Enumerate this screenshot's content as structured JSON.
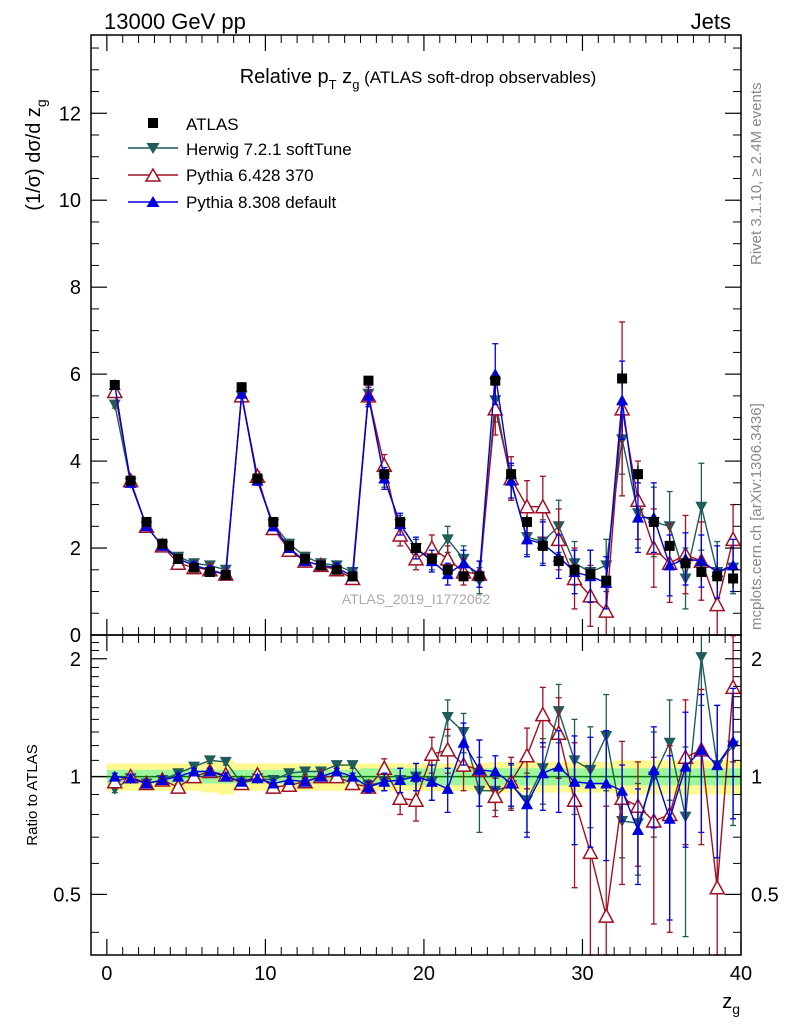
{
  "header": {
    "energy": "13000 GeV pp",
    "category": "Jets"
  },
  "side_labels": {
    "rivet": "Rivet 3.1.10, ≥ 2.4M events",
    "mcplots": "mcplots.cern.ch [arXiv:1306.3436]"
  },
  "watermark": "ATLAS_2019_I1772062",
  "colors": {
    "atlas": "#000000",
    "herwig": "#1f5c5c",
    "pythia6": "#a01020",
    "pythia8": "#0000dd",
    "band_outer": "#fdf98f",
    "band_inner": "#9cf79c",
    "reference_line": "#007700"
  },
  "chart_data": [
    {
      "type": "scatter",
      "panel": "main",
      "title": "Relative p_T z_g (ATLAS soft-drop observables)",
      "title_parts": {
        "pre": "Relative p",
        "sub_t": "T",
        "z": " z",
        "sub_g": "g",
        "post": " (ATLAS soft-drop observables)"
      },
      "xlabel": "z_g",
      "ylabel": "(1/σ) dσ/d z_g",
      "ylabel_parts": {
        "main": "(1/σ) dσ/d z",
        "sub": "g"
      },
      "xlim": [
        -1,
        40
      ],
      "ylim": [
        0,
        13.8
      ],
      "x_ticks": [
        0,
        10,
        20,
        30,
        40
      ],
      "y_ticks": [
        0,
        2,
        4,
        6,
        8,
        10,
        12
      ],
      "x": [
        0.5,
        1.5,
        2.5,
        3.5,
        4.5,
        5.5,
        6.5,
        7.5,
        8.5,
        9.5,
        10.5,
        11.5,
        12.5,
        13.5,
        14.5,
        15.5,
        16.5,
        17.5,
        18.5,
        19.5,
        20.5,
        21.5,
        22.5,
        23.5,
        24.5,
        25.5,
        26.5,
        27.5,
        28.5,
        29.5,
        30.5,
        31.5,
        32.5,
        33.5,
        34.5,
        35.5,
        36.5,
        37.5,
        38.5,
        39.5
      ],
      "legend_position": "top-left",
      "series": [
        {
          "name": "ATLAS",
          "key": "atlas",
          "marker": "square",
          "values": [
            5.75,
            3.55,
            2.6,
            2.1,
            1.75,
            1.55,
            1.45,
            1.38,
            5.7,
            3.6,
            2.6,
            2.05,
            1.75,
            1.6,
            1.5,
            1.35,
            5.85,
            3.7,
            2.6,
            2.0,
            1.75,
            1.5,
            1.35,
            1.35,
            5.85,
            3.7,
            2.6,
            2.05,
            1.7,
            1.5,
            1.4,
            1.25,
            5.9,
            3.7,
            2.6,
            2.05,
            1.65,
            1.45,
            1.35,
            1.3
          ],
          "errors": [
            0.05,
            0.05,
            0.05,
            0.05,
            0.05,
            0.05,
            0.05,
            0.05,
            0.05,
            0.05,
            0.05,
            0.05,
            0.05,
            0.05,
            0.05,
            0.05,
            0.1,
            0.1,
            0.1,
            0.1,
            0.1,
            0.1,
            0.1,
            0.1,
            0.15,
            0.15,
            0.15,
            0.15,
            0.15,
            0.15,
            0.15,
            0.15,
            0.2,
            0.2,
            0.2,
            0.2,
            0.2,
            0.2,
            0.2,
            0.2
          ]
        },
        {
          "name": "Herwig 7.2.1 softTune",
          "key": "herwig",
          "marker": "triangle-down",
          "values": [
            5.3,
            3.5,
            2.5,
            2.05,
            1.8,
            1.65,
            1.6,
            1.5,
            5.5,
            3.55,
            2.55,
            2.1,
            1.8,
            1.65,
            1.6,
            1.45,
            5.55,
            3.6,
            2.55,
            2.0,
            1.7,
            2.2,
            1.75,
            1.25,
            5.4,
            3.5,
            2.25,
            2.15,
            2.5,
            1.65,
            1.45,
            1.6,
            4.5,
            2.8,
            2.6,
            2.5,
            1.3,
            2.95,
            1.45,
            1.55
          ],
          "errors": [
            0.08,
            0.08,
            0.08,
            0.08,
            0.08,
            0.08,
            0.08,
            0.08,
            0.1,
            0.1,
            0.1,
            0.1,
            0.1,
            0.1,
            0.1,
            0.1,
            0.15,
            0.2,
            0.2,
            0.2,
            0.2,
            0.3,
            0.3,
            0.3,
            0.5,
            0.4,
            0.4,
            0.5,
            0.6,
            0.5,
            0.5,
            0.6,
            0.8,
            0.8,
            0.8,
            0.8,
            0.7,
            1.0,
            0.7,
            0.6
          ]
        },
        {
          "name": "Pythia 6.428 370",
          "key": "pythia6",
          "marker": "triangle-up-open",
          "values": [
            5.6,
            3.55,
            2.5,
            2.05,
            1.65,
            1.55,
            1.5,
            1.4,
            5.5,
            3.65,
            2.45,
            1.95,
            1.7,
            1.6,
            1.5,
            1.3,
            5.5,
            3.9,
            2.3,
            1.75,
            2.0,
            1.75,
            1.45,
            1.4,
            5.2,
            3.6,
            2.95,
            2.95,
            2.2,
            1.3,
            0.9,
            0.55,
            5.2,
            3.1,
            2.0,
            1.65,
            1.85,
            1.7,
            0.7,
            2.2
          ],
          "errors": [
            0.08,
            0.08,
            0.08,
            0.08,
            0.08,
            0.08,
            0.08,
            0.08,
            0.1,
            0.1,
            0.1,
            0.1,
            0.1,
            0.1,
            0.1,
            0.1,
            0.2,
            0.25,
            0.25,
            0.25,
            0.3,
            0.3,
            0.3,
            0.3,
            0.6,
            0.5,
            0.6,
            0.7,
            0.7,
            0.7,
            0.7,
            0.7,
            2.0,
            0.9,
            0.9,
            0.9,
            0.9,
            0.9,
            0.8,
            0.8
          ]
        },
        {
          "name": "Pythia 8.308 default",
          "key": "pythia8",
          "marker": "triangle-up",
          "values": [
            5.75,
            3.5,
            2.5,
            2.05,
            1.75,
            1.6,
            1.5,
            1.38,
            5.55,
            3.55,
            2.5,
            2.0,
            1.7,
            1.6,
            1.55,
            1.35,
            5.5,
            3.6,
            2.55,
            2.0,
            1.7,
            1.4,
            1.65,
            1.4,
            6.0,
            3.55,
            2.2,
            2.1,
            1.8,
            1.45,
            1.35,
            1.2,
            5.4,
            2.7,
            2.7,
            1.6,
            1.75,
            1.7,
            1.45,
            1.6
          ],
          "errors": [
            0.08,
            0.08,
            0.08,
            0.08,
            0.08,
            0.08,
            0.08,
            0.08,
            0.1,
            0.1,
            0.1,
            0.1,
            0.1,
            0.1,
            0.1,
            0.1,
            0.25,
            0.25,
            0.25,
            0.25,
            0.25,
            0.25,
            0.3,
            0.3,
            0.7,
            0.4,
            0.4,
            0.5,
            0.5,
            0.5,
            0.6,
            0.6,
            0.9,
            0.8,
            0.8,
            0.7,
            0.6,
            0.6,
            0.6,
            0.6
          ]
        }
      ]
    },
    {
      "type": "scatter",
      "panel": "ratio",
      "ylabel": "Ratio to ATLAS",
      "xlabel": "z_g",
      "xlim": [
        -1,
        40
      ],
      "ylim": [
        0.35,
        2.3
      ],
      "x_ticks": [
        0,
        10,
        20,
        30,
        40
      ],
      "y_ticks": [
        0.5,
        1,
        2
      ],
      "y_tick_labels": [
        "0.5",
        "1",
        "2"
      ],
      "reference_value": 1,
      "x": [
        0.5,
        1.5,
        2.5,
        3.5,
        4.5,
        5.5,
        6.5,
        7.5,
        8.5,
        9.5,
        10.5,
        11.5,
        12.5,
        13.5,
        14.5,
        15.5,
        16.5,
        17.5,
        18.5,
        19.5,
        20.5,
        21.5,
        22.5,
        23.5,
        24.5,
        25.5,
        26.5,
        27.5,
        28.5,
        29.5,
        30.5,
        31.5,
        32.5,
        33.5,
        34.5,
        35.5,
        36.5,
        37.5,
        38.5,
        39.5
      ],
      "band_inner_halfwidth": [
        0.04,
        0.04,
        0.04,
        0.04,
        0.04,
        0.04,
        0.04,
        0.04,
        0.04,
        0.04,
        0.04,
        0.04,
        0.04,
        0.04,
        0.04,
        0.04,
        0.05,
        0.05,
        0.05,
        0.05,
        0.05,
        0.05,
        0.05,
        0.05,
        0.05,
        0.05,
        0.05,
        0.05,
        0.05,
        0.05,
        0.05,
        0.05,
        0.05,
        0.05,
        0.05,
        0.05,
        0.05,
        0.05,
        0.05,
        0.05
      ],
      "band_outer_halfwidth": [
        0.08,
        0.08,
        0.08,
        0.08,
        0.08,
        0.08,
        0.09,
        0.1,
        0.08,
        0.08,
        0.08,
        0.08,
        0.08,
        0.08,
        0.08,
        0.08,
        0.08,
        0.08,
        0.08,
        0.08,
        0.08,
        0.08,
        0.08,
        0.08,
        0.09,
        0.09,
        0.09,
        0.09,
        0.09,
        0.09,
        0.09,
        0.09,
        0.1,
        0.1,
        0.1,
        0.1,
        0.1,
        0.1,
        0.1,
        0.1
      ],
      "series": [
        {
          "name": "Herwig 7.2.1 softTune",
          "key": "herwig",
          "marker": "triangle-down",
          "values": [
            0.93,
            0.99,
            0.96,
            0.98,
            1.02,
            1.06,
            1.1,
            1.09,
            0.96,
            0.99,
            0.98,
            1.02,
            1.03,
            1.03,
            1.07,
            1.07,
            0.95,
            0.97,
            0.98,
            1.0,
            0.97,
            1.42,
            1.3,
            0.92,
            0.92,
            0.95,
            0.87,
            1.05,
            1.47,
            1.1,
            1.04,
            1.27,
            0.77,
            0.76,
            1.0,
            1.22,
            0.79,
            2.02,
            1.07,
            1.2
          ],
          "errors": [
            0.02,
            0.02,
            0.02,
            0.02,
            0.02,
            0.02,
            0.02,
            0.02,
            0.02,
            0.02,
            0.02,
            0.02,
            0.02,
            0.02,
            0.02,
            0.02,
            0.03,
            0.05,
            0.07,
            0.08,
            0.1,
            0.15,
            0.15,
            0.2,
            0.1,
            0.12,
            0.15,
            0.2,
            0.25,
            0.3,
            0.3,
            0.35,
            0.15,
            0.2,
            0.3,
            0.35,
            0.4,
            0.5,
            0.45,
            0.45
          ]
        },
        {
          "name": "Pythia 6.428 370",
          "key": "pythia6",
          "marker": "triangle-up-open",
          "values": [
            0.97,
            1.0,
            0.96,
            0.98,
            0.94,
            1.0,
            1.03,
            1.01,
            0.96,
            1.01,
            0.94,
            0.95,
            0.97,
            1.0,
            1.0,
            0.96,
            0.94,
            1.05,
            0.88,
            0.87,
            1.14,
            1.17,
            1.07,
            1.04,
            0.89,
            0.97,
            1.13,
            1.44,
            1.29,
            0.87,
            0.64,
            0.44,
            0.88,
            0.84,
            0.77,
            0.8,
            1.12,
            1.17,
            0.52,
            1.69
          ],
          "errors": [
            0.02,
            0.02,
            0.02,
            0.02,
            0.02,
            0.02,
            0.02,
            0.02,
            0.02,
            0.02,
            0.02,
            0.02,
            0.02,
            0.02,
            0.02,
            0.02,
            0.03,
            0.06,
            0.08,
            0.1,
            0.12,
            0.15,
            0.15,
            0.2,
            0.1,
            0.15,
            0.2,
            0.25,
            0.3,
            0.35,
            0.4,
            0.4,
            0.35,
            0.25,
            0.35,
            0.4,
            0.45,
            0.5,
            0.55,
            0.6
          ]
        },
        {
          "name": "Pythia 8.308 default",
          "key": "pythia8",
          "marker": "triangle-up",
          "values": [
            1.0,
            0.99,
            0.96,
            0.98,
            1.0,
            1.03,
            1.03,
            1.0,
            0.97,
            0.99,
            0.96,
            0.98,
            0.97,
            1.0,
            1.03,
            1.0,
            0.94,
            0.97,
            0.98,
            1.0,
            0.97,
            0.93,
            1.22,
            1.04,
            1.03,
            0.96,
            0.85,
            1.02,
            1.06,
            0.97,
            0.96,
            0.96,
            0.92,
            0.73,
            1.04,
            0.78,
            1.06,
            1.17,
            1.07,
            1.23
          ],
          "errors": [
            0.02,
            0.02,
            0.02,
            0.02,
            0.02,
            0.02,
            0.02,
            0.02,
            0.02,
            0.02,
            0.02,
            0.02,
            0.02,
            0.02,
            0.02,
            0.02,
            0.03,
            0.05,
            0.07,
            0.08,
            0.1,
            0.12,
            0.15,
            0.2,
            0.1,
            0.12,
            0.15,
            0.2,
            0.25,
            0.3,
            0.3,
            0.35,
            0.15,
            0.2,
            0.3,
            0.35,
            0.4,
            0.45,
            0.45,
            0.45
          ]
        }
      ]
    }
  ]
}
